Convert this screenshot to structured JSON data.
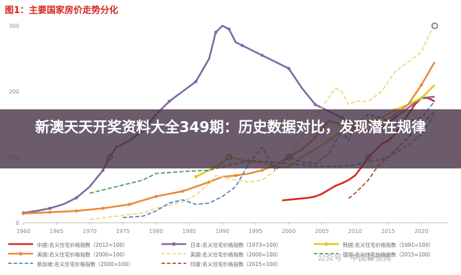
{
  "figure_title": "图1：主要国家房价走势分化",
  "banner_text": "新澳天天开奖资料大全349期：历史数据对比，发现潜在规律",
  "watermark": "公众号 · 中国幕僚网",
  "chart_data": {
    "type": "line",
    "title": "",
    "xlabel": "",
    "ylabel": "",
    "xlim": [
      1960,
      2024
    ],
    "ylim": [
      0,
      310
    ],
    "xticks": [
      1960,
      1965,
      1970,
      1975,
      1980,
      1985,
      1990,
      1995,
      2000,
      2005,
      2010,
      2015,
      2020
    ],
    "yticks": [
      0,
      100,
      200,
      300
    ],
    "grid": false,
    "legend_position": "bottom",
    "series": [
      {
        "name": "中国:名义住宅价格指数（2012=100）",
        "color": "#d7261e",
        "style": "solid",
        "x": [
          1999,
          2001,
          2003,
          2004,
          2005,
          2006,
          2007,
          2008,
          2009,
          2010,
          2011,
          2012,
          2013,
          2014,
          2015,
          2016,
          2017,
          2018,
          2019,
          2020,
          2021,
          2022
        ],
        "y": [
          34,
          36,
          38,
          40,
          44,
          50,
          56,
          60,
          65,
          72,
          85,
          100,
          110,
          120,
          125,
          135,
          150,
          165,
          180,
          190,
          190,
          185
        ]
      },
      {
        "name": "日本:名义住宅价格指数（1973=100）",
        "color": "#7b6b9e",
        "style": "solid",
        "markers_every": 2,
        "x": [
          1960,
          1962,
          1964,
          1966,
          1968,
          1970,
          1972,
          1973,
          1974,
          1976,
          1978,
          1980,
          1982,
          1984,
          1986,
          1988,
          1989,
          1990,
          1991,
          1992,
          1993,
          1994,
          1996,
          1998,
          2000,
          2002,
          2004,
          2006,
          2008,
          2010,
          2012,
          2014,
          2016,
          2018,
          2020,
          2022
        ],
        "y": [
          15,
          18,
          22,
          28,
          38,
          55,
          80,
          100,
          115,
          125,
          140,
          165,
          185,
          200,
          215,
          250,
          290,
          300,
          295,
          275,
          270,
          265,
          255,
          245,
          235,
          205,
          180,
          170,
          160,
          145,
          140,
          145,
          160,
          175,
          190,
          192
        ]
      },
      {
        "name": "韩国:名义住宅价格指数（1991=100）",
        "color": "#e6c619",
        "style": "solid",
        "markers_every": 2,
        "x": [
          1986,
          1988,
          1990,
          1991,
          1992,
          1994,
          1996,
          1998,
          2000,
          2002,
          2004,
          2006,
          2008,
          2010,
          2012,
          2014,
          2016,
          2018,
          2020,
          2022
        ],
        "y": [
          70,
          80,
          92,
          100,
          98,
          93,
          92,
          85,
          85,
          100,
          112,
          125,
          140,
          150,
          155,
          160,
          172,
          180,
          190,
          210
        ]
      },
      {
        "name": "美国:名义住宅价格指数（2000=100）",
        "color": "#e88a3c",
        "style": "solid",
        "markers_every": 2,
        "x": [
          1960,
          1962,
          1964,
          1966,
          1968,
          1970,
          1972,
          1974,
          1976,
          1978,
          1980,
          1982,
          1984,
          1986,
          1988,
          1990,
          1992,
          1994,
          1996,
          1998,
          2000,
          2002,
          2004,
          2006,
          2008,
          2010,
          2012,
          2014,
          2016,
          2018,
          2020,
          2022
        ],
        "y": [
          14,
          15,
          16,
          17,
          18,
          20,
          22,
          25,
          28,
          34,
          40,
          44,
          48,
          55,
          62,
          70,
          72,
          75,
          80,
          88,
          100,
          112,
          130,
          155,
          150,
          140,
          140,
          150,
          165,
          180,
          210,
          245
        ]
      },
      {
        "name": "英国:名义住宅价格指数（2000=100）",
        "color": "#f2d682",
        "style": "dashed",
        "x": [
          1970,
          1974,
          1978,
          1980,
          1984,
          1986,
          1988,
          1989,
          1990,
          1992,
          1994,
          1996,
          1998,
          2000,
          2002,
          2004,
          2006,
          2007,
          2008,
          2009,
          2010,
          2012,
          2014,
          2016,
          2018,
          2020,
          2022
        ],
        "y": [
          5,
          10,
          15,
          22,
          32,
          42,
          60,
          72,
          70,
          65,
          62,
          65,
          80,
          100,
          130,
          160,
          190,
          205,
          200,
          180,
          185,
          185,
          200,
          230,
          245,
          260,
          305
        ]
      },
      {
        "name": "新加坡:名义住宅价格指数（2000=100）",
        "color": "#4a86c0",
        "style": "dashed",
        "x": [
          1975,
          1978,
          1980,
          1982,
          1984,
          1986,
          1988,
          1990,
          1992,
          1994,
          1996,
          1998,
          2000,
          2002,
          2004,
          2006,
          2008,
          2009,
          2010,
          2012,
          2014,
          2016,
          2018,
          2020,
          2022
        ],
        "y": [
          8,
          10,
          18,
          30,
          35,
          28,
          30,
          40,
          55,
          90,
          115,
          80,
          100,
          92,
          90,
          105,
          140,
          125,
          150,
          165,
          160,
          150,
          155,
          160,
          185
        ]
      },
      {
        "name": "德国:名义住宅价格指数（2015=100）",
        "color": "#4a9e5c",
        "style": "dashed",
        "x": [
          1970,
          1974,
          1978,
          1980,
          1984,
          1988,
          1990,
          1994,
          1998,
          2000,
          2004,
          2008,
          2010,
          2012,
          2014,
          2015,
          2016,
          2018,
          2020,
          2022
        ],
        "y": [
          45,
          55,
          65,
          75,
          78,
          80,
          85,
          95,
          92,
          90,
          86,
          86,
          88,
          93,
          97,
          100,
          106,
          118,
          135,
          165
        ]
      },
      {
        "name": "印度:名义住宅价格指数（2015=100）",
        "color": "#b5502a",
        "style": "dashed",
        "x": [
          2009,
          2010,
          2011,
          2012,
          2013,
          2014,
          2015,
          2016,
          2017,
          2018,
          2019,
          2020,
          2021,
          2022
        ],
        "y": [
          37,
          45,
          55,
          65,
          80,
          92,
          100,
          110,
          120,
          130,
          140,
          150,
          160,
          170
        ]
      }
    ],
    "legend": [
      [
        "中国:名义住宅价格指数（2012=100）",
        "日本:名义住宅价格指数（1973=100）",
        "韩国:名义住宅价格指数（1991=100）"
      ],
      [
        "美国:名义住宅价格指数（2000=100）",
        "英国:名义住宅价格指数（2000=100）",
        "德国:名义住宅价格指数（2015=100）"
      ],
      [
        "新加坡:名义住宅价格指数（2000=100）",
        "印度:名义住宅价格指数（2015=100）"
      ]
    ]
  }
}
